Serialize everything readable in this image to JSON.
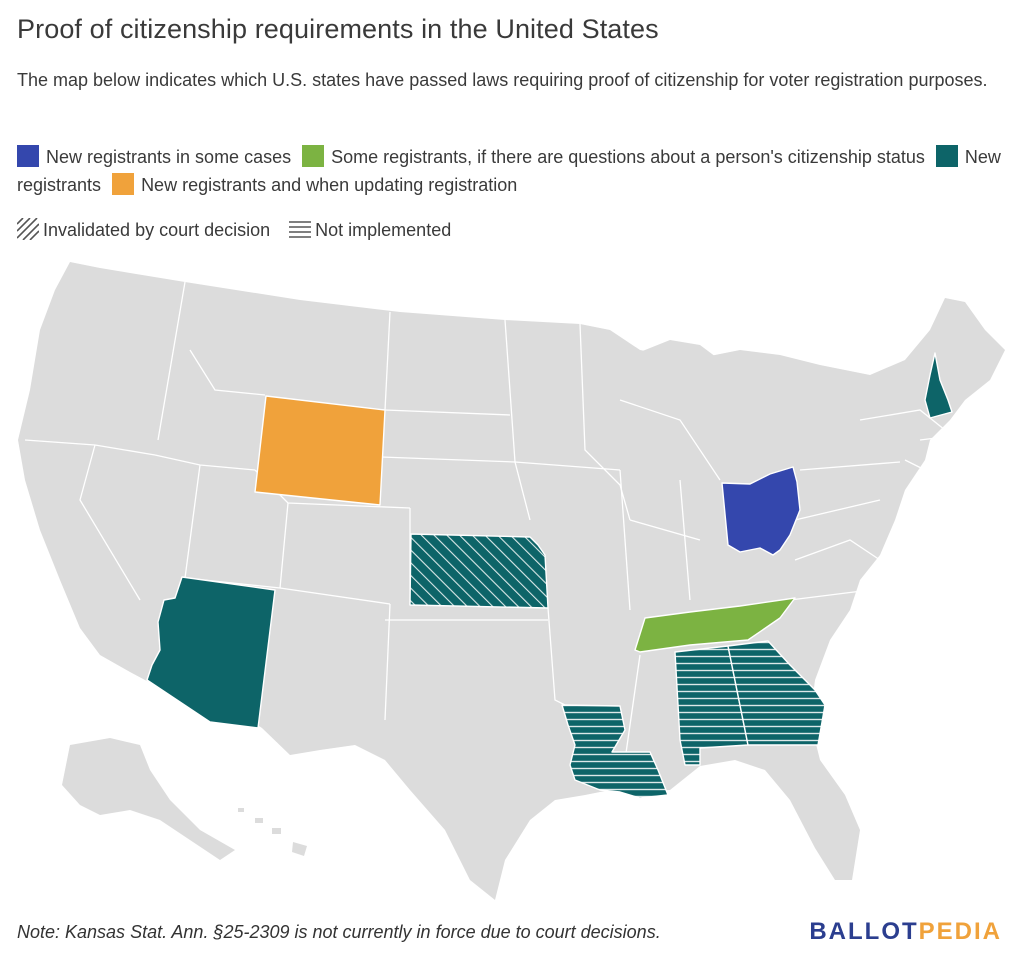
{
  "title": "Proof of citizenship requirements in the United States",
  "subtitle": "The map below indicates which U.S. states have passed laws requiring proof of citizenship for voter registration purposes.",
  "legend": [
    {
      "label": "New registrants in some cases",
      "color": "#3447ad"
    },
    {
      "label": "Some registrants, if there are questions about a person's citizenship status",
      "color": "#7cb342"
    },
    {
      "label": "New registrants",
      "color": "#0d6468"
    },
    {
      "label": "New registrants and when updating registration",
      "color": "#f0a23b"
    }
  ],
  "patterns": [
    {
      "label": "Invalidated by court decision",
      "icon": "diagonal-hatch-icon"
    },
    {
      "label": "Not implemented",
      "icon": "horizontal-lines-icon"
    }
  ],
  "map_states": {
    "New registrants in some cases": [
      "Ohio"
    ],
    "Some registrants, if there are questions about a person's citizenship status": [
      "Tennessee"
    ],
    "New registrants": [
      "Arizona",
      "New Hampshire",
      "Kansas",
      "Louisiana",
      "Alabama",
      "Georgia"
    ],
    "New registrants and when updating registration": [
      "Wyoming"
    ],
    "Invalidated by court decision": [
      "Kansas"
    ],
    "Not implemented": [
      "Louisiana",
      "Alabama",
      "Georgia"
    ]
  },
  "note": "Note: Kansas Stat. Ann. §25-2309 is not currently in force due to court decisions.",
  "logo": {
    "part1": "BALLOT",
    "part2": "PEDIA"
  }
}
